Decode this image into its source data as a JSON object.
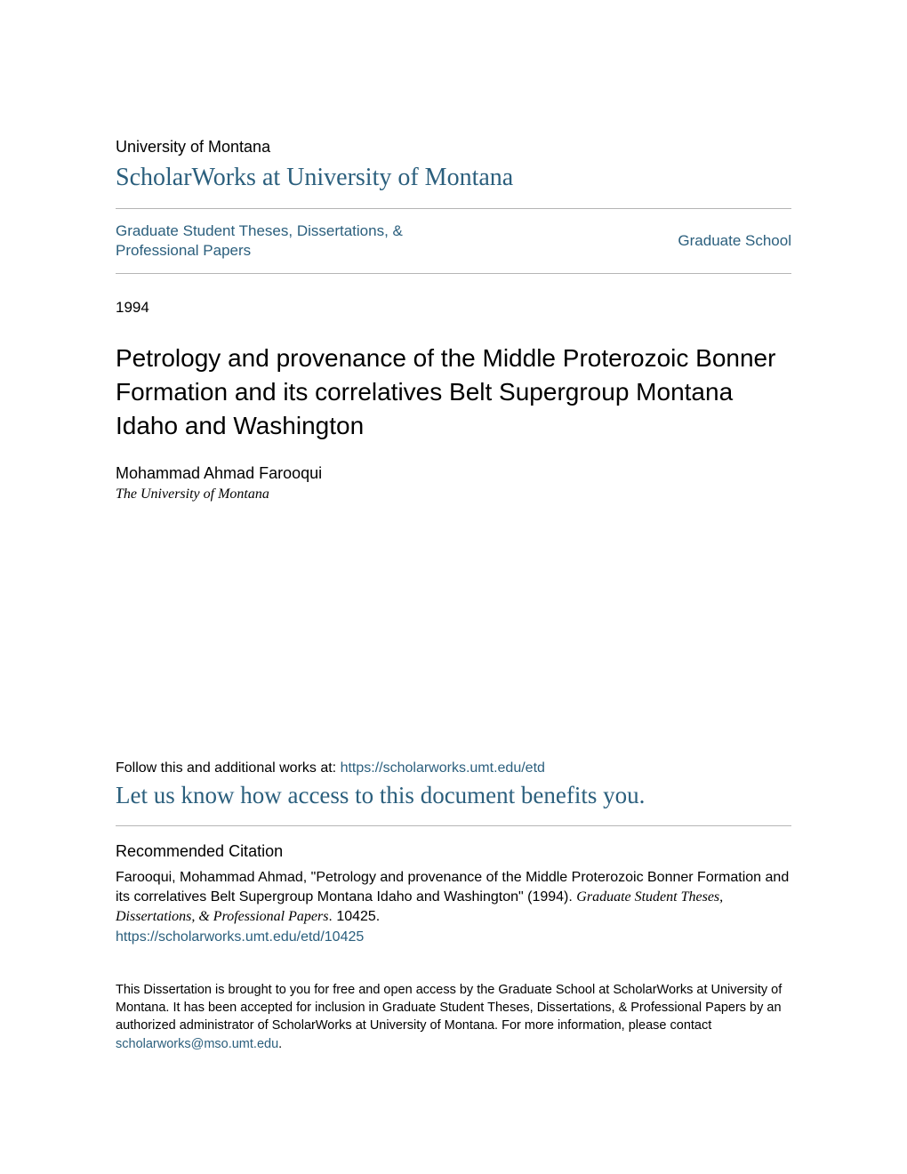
{
  "colors": {
    "link": "#2b5f7d",
    "text": "#000000",
    "divider": "#b5b5b5",
    "background": "#ffffff"
  },
  "typography": {
    "serif_family": "Georgia, 'Times New Roman', serif",
    "sans_family": "Arial, Helvetica, sans-serif",
    "institution_fontsize": 18,
    "repository_fontsize": 28,
    "nav_fontsize": 17,
    "title_fontsize": 28,
    "author_fontsize": 18,
    "affiliation_fontsize": 16,
    "body_fontsize": 16,
    "access_link_fontsize": 27,
    "citation_heading_fontsize": 18,
    "footer_fontsize": 14.5
  },
  "header": {
    "institution": "University of Montana",
    "repository": "ScholarWorks at University of Montana"
  },
  "nav": {
    "left": "Graduate Student Theses, Dissertations, & Professional Papers",
    "right": "Graduate School"
  },
  "metadata": {
    "year": "1994",
    "title": "Petrology and provenance of the Middle Proterozoic Bonner Formation and its correlatives Belt Supergroup Montana Idaho and Washington",
    "author": "Mohammad Ahmad Farooqui",
    "affiliation": "The University of Montana"
  },
  "follow": {
    "prefix": "Follow this and additional works at: ",
    "url": "https://scholarworks.umt.edu/etd"
  },
  "access_link": "Let us know how access to this document benefits you.",
  "citation": {
    "heading": "Recommended Citation",
    "text_prefix": "Farooqui, Mohammad Ahmad, \"Petrology and provenance of the Middle Proterozoic Bonner Formation and its correlatives Belt Supergroup Montana Idaho and Washington\" (1994). ",
    "text_italic": "Graduate Student Theses, Dissertations, & Professional Papers",
    "text_suffix": ". 10425.",
    "url": "https://scholarworks.umt.edu/etd/10425"
  },
  "footer": {
    "text_prefix": "This Dissertation is brought to you for free and open access by the Graduate School at ScholarWorks at University of Montana. It has been accepted for inclusion in Graduate Student Theses, Dissertations, & Professional Papers by an authorized administrator of ScholarWorks at University of Montana. For more information, please contact ",
    "email": "scholarworks@mso.umt.edu",
    "text_suffix": "."
  }
}
